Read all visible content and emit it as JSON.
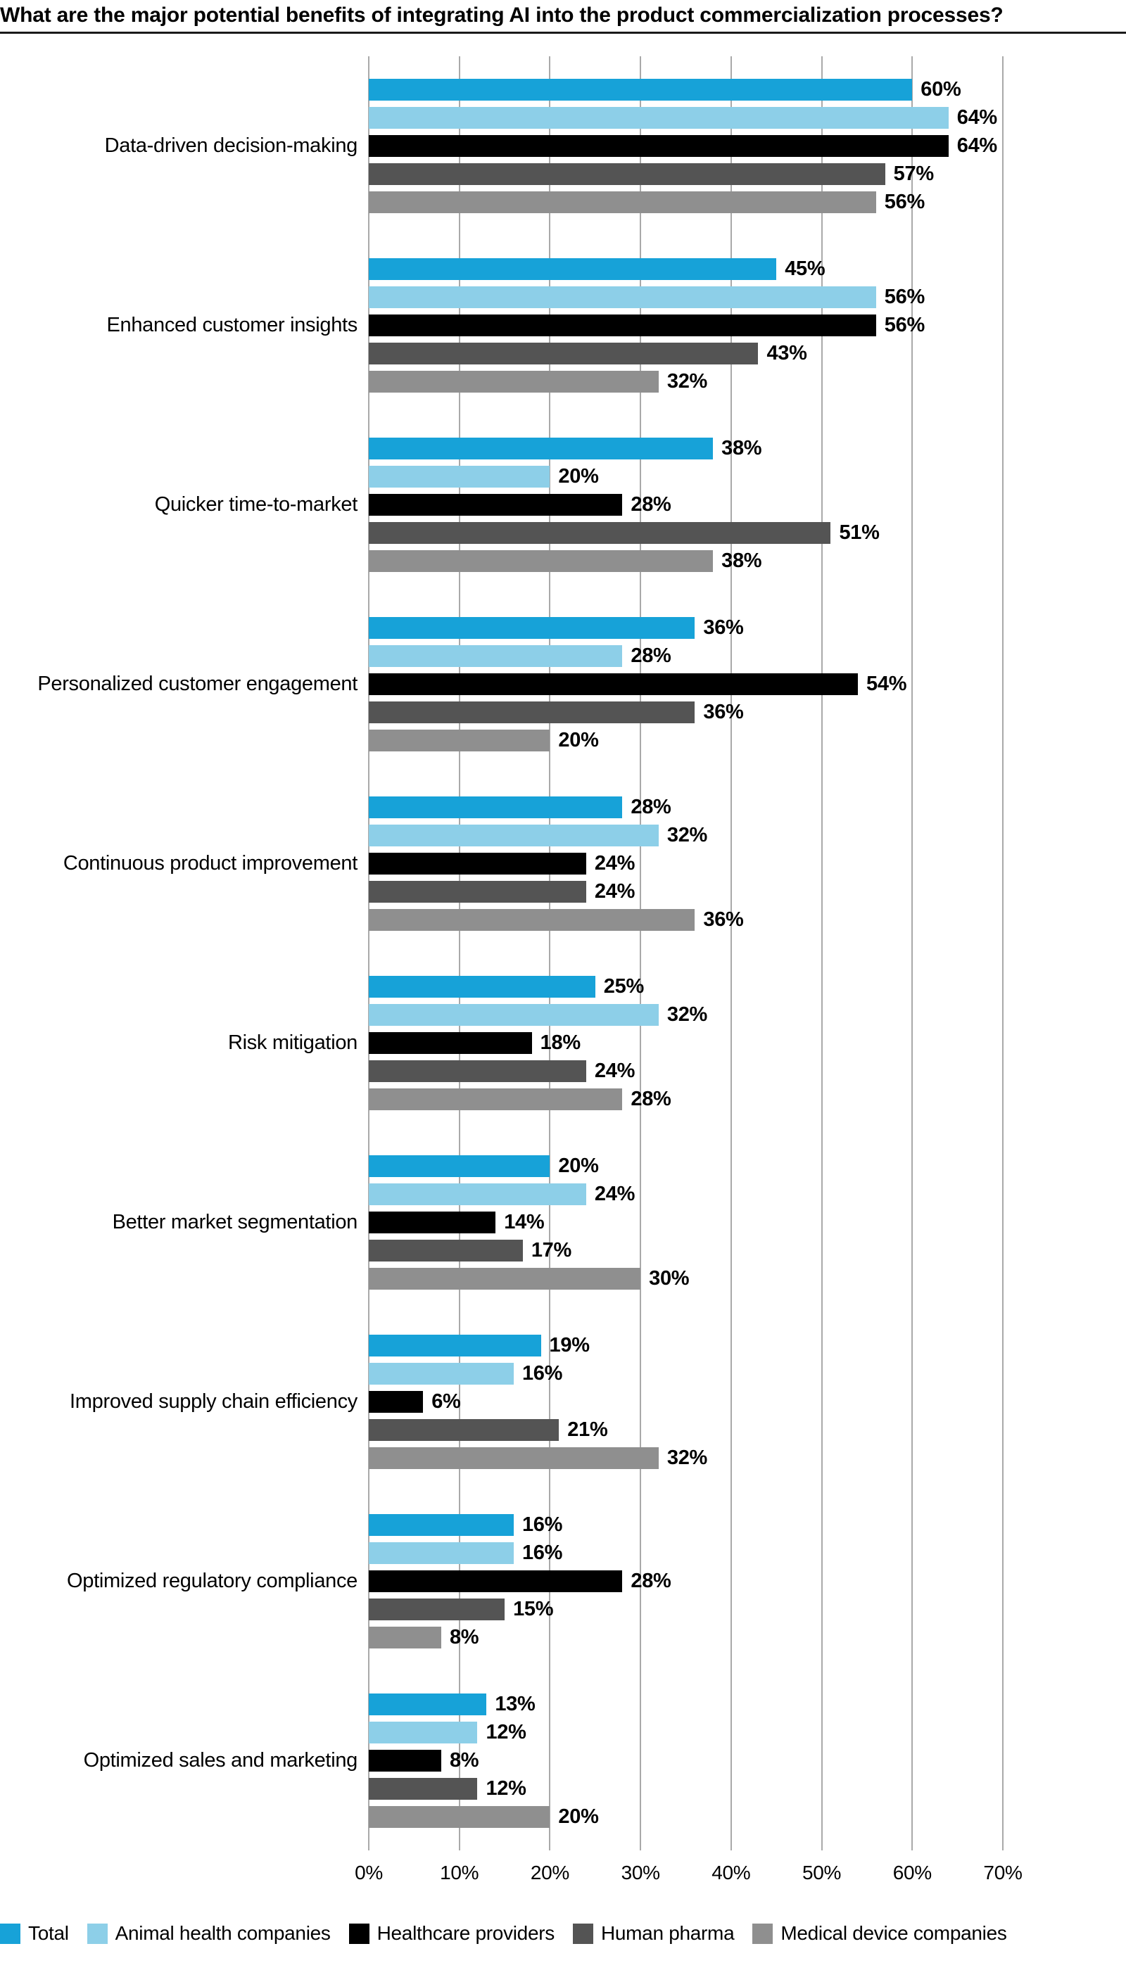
{
  "chart_data": {
    "type": "bar",
    "orientation": "horizontal",
    "title": "What are the major potential benefits of integrating AI into the product commercialization processes?",
    "categories": [
      "Data-driven decision-making",
      "Enhanced customer insights",
      "Quicker time-to-market",
      "Personalized customer engagement",
      "Continuous product improvement",
      "Risk mitigation",
      "Better market segmentation",
      "Improved supply chain efficiency",
      "Optimized regulatory compliance",
      "Optimized sales and marketing"
    ],
    "series": [
      {
        "name": "Total",
        "color": "#17A2D8",
        "values": [
          60,
          45,
          38,
          36,
          28,
          25,
          20,
          19,
          16,
          13
        ]
      },
      {
        "name": "Animal health companies",
        "color": "#8DCFE8",
        "values": [
          64,
          56,
          20,
          28,
          32,
          32,
          24,
          16,
          16,
          12
        ]
      },
      {
        "name": "Healthcare providers",
        "color": "#000000",
        "values": [
          64,
          56,
          28,
          54,
          24,
          18,
          14,
          6,
          28,
          8
        ]
      },
      {
        "name": "Human pharma",
        "color": "#545454",
        "values": [
          57,
          43,
          51,
          36,
          24,
          24,
          17,
          21,
          15,
          12
        ]
      },
      {
        "name": "Medical device companies",
        "color": "#8F8F8F",
        "values": [
          56,
          32,
          38,
          20,
          36,
          28,
          30,
          32,
          8,
          20
        ]
      }
    ],
    "xlim": [
      0,
      70
    ],
    "xticks": [
      "0%",
      "10%",
      "20%",
      "30%",
      "40%",
      "50%",
      "60%",
      "70%"
    ],
    "value_suffix": "%",
    "grid": "vertical",
    "grid_color": "#A9A9A9",
    "legend_position": "bottom"
  }
}
